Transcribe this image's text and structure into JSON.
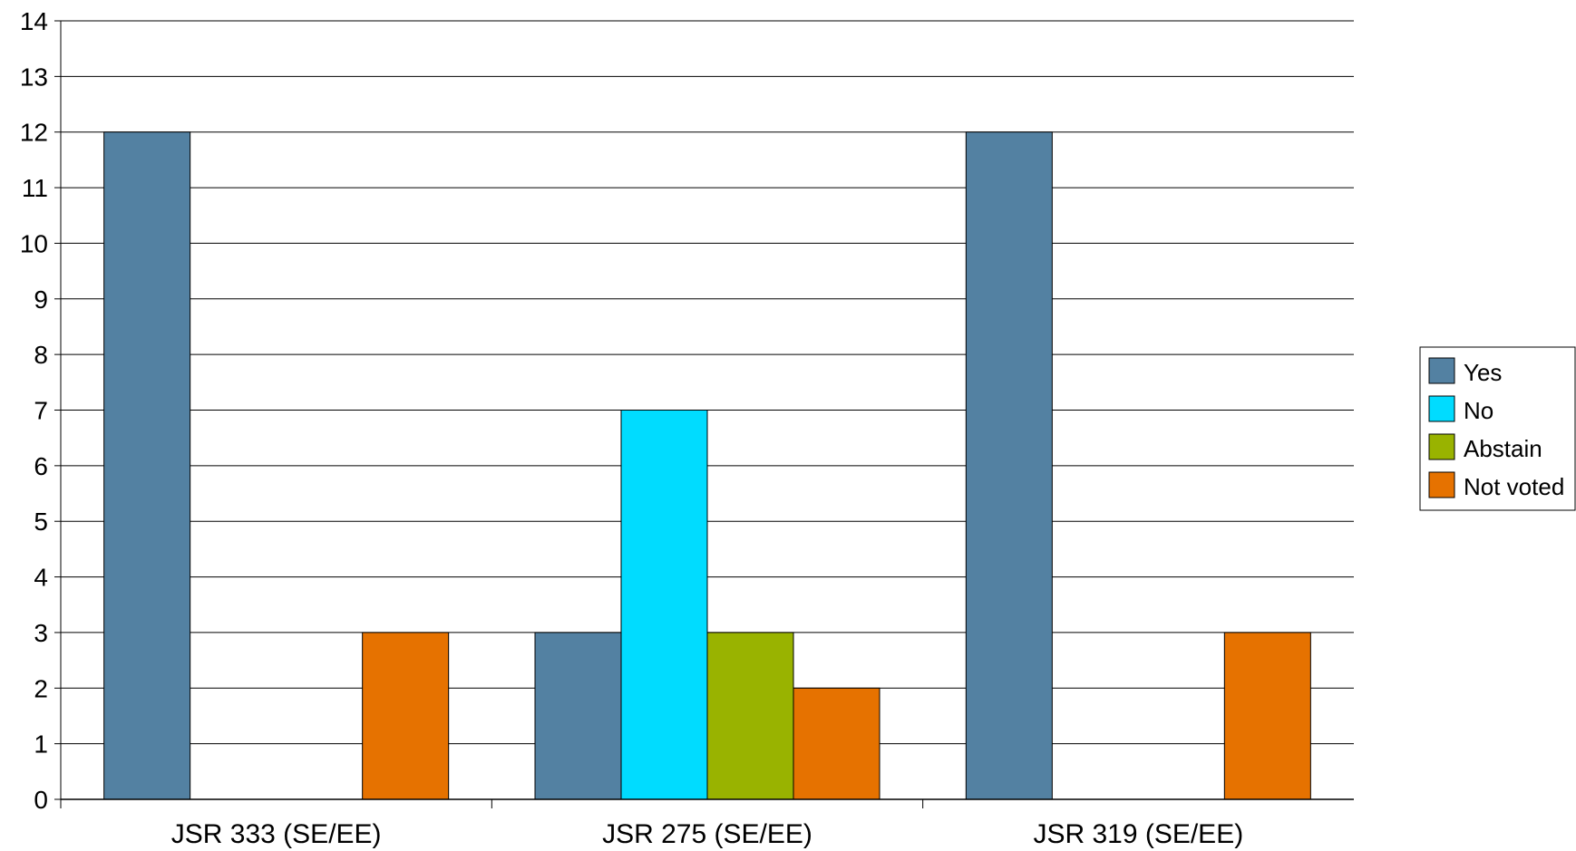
{
  "chart_data": {
    "type": "bar",
    "categories": [
      "JSR 333 (SE/EE)",
      "JSR 275 (SE/EE)",
      "JSR 319 (SE/EE)"
    ],
    "series": [
      {
        "name": "Yes",
        "values": [
          12,
          3,
          12
        ],
        "color": "#5381a2"
      },
      {
        "name": "No",
        "values": [
          0,
          7,
          0
        ],
        "color": "#00dcff"
      },
      {
        "name": "Abstain",
        "values": [
          0,
          3,
          0
        ],
        "color": "#99b300"
      },
      {
        "name": "Not voted",
        "values": [
          3,
          2,
          3
        ],
        "color": "#e67200"
      }
    ],
    "title": "",
    "xlabel": "",
    "ylabel": "",
    "ylim": [
      0,
      14
    ],
    "yticks": [
      0,
      1,
      2,
      3,
      4,
      5,
      6,
      7,
      8,
      9,
      10,
      11,
      12,
      13,
      14
    ],
    "grid": true,
    "legend_position": "right"
  }
}
